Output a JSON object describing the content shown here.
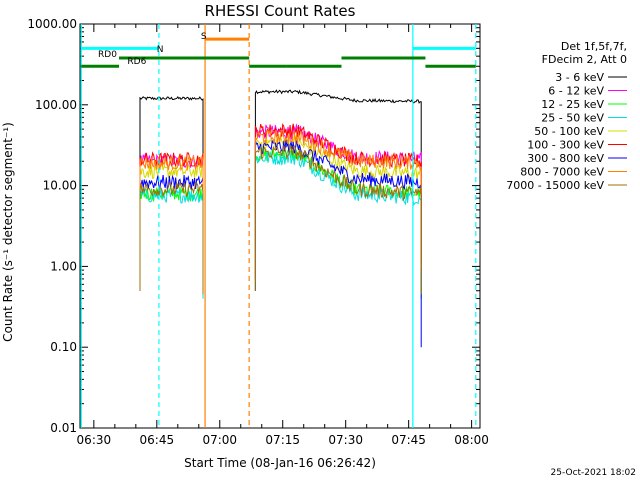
{
  "chart_data": {
    "type": "line",
    "title": "RHESSI Count Rates",
    "xlabel": "Start Time (08-Jan-16 06:26:42)",
    "ylabel": "Count Rate (s⁻¹ detector segment⁻¹)",
    "yscale": "log",
    "ylim": [
      0.01,
      1000
    ],
    "xlim_minutes": [
      "06:26:42",
      "08:02:00"
    ],
    "x_ticks": [
      "06:30",
      "06:45",
      "07:00",
      "07:15",
      "07:30",
      "07:45",
      "08:00"
    ],
    "y_ticks": [
      "0.01",
      "0.10",
      "1.00",
      "10.00",
      "100.00",
      "1000.00"
    ],
    "legend_header": [
      "Det 1f,5f,7f,",
      "FDecim 2, Att 0"
    ],
    "series": [
      {
        "name": "3 - 6 keV",
        "color": "#000000",
        "level1": 120,
        "level2": 145,
        "end2": 110
      },
      {
        "name": "6 - 12 keV",
        "color": "#ff00ff",
        "level1": 20,
        "level2": 46,
        "end2": 21
      },
      {
        "name": "12 - 25 keV",
        "color": "#00ff00",
        "level1": 8,
        "level2": 24,
        "end2": 8
      },
      {
        "name": "25 - 50 keV",
        "color": "#00e0e0",
        "level1": 7.5,
        "level2": 22,
        "end2": 7
      },
      {
        "name": "50 - 100 keV",
        "color": "#d8d800",
        "level1": 15,
        "level2": 34,
        "end2": 14
      },
      {
        "name": "100 - 300 keV",
        "color": "#ff0000",
        "level1": 21,
        "level2": 48,
        "end2": 20
      },
      {
        "name": "300 - 800 keV",
        "color": "#0000ff",
        "level1": 11,
        "level2": 30,
        "end2": 11
      },
      {
        "name": "800 - 7000 keV",
        "color": "#ff8000",
        "level1": 19,
        "level2": 40,
        "end2": 19
      },
      {
        "name": "7000 - 15000 keV",
        "color": "#a07000",
        "level1": 9,
        "level2": 26,
        "end2": 8
      }
    ],
    "flags": [
      {
        "label": "N",
        "color": "#00ffff",
        "value": 500
      },
      {
        "label": "S",
        "color": "#ff8000",
        "value": 650
      },
      {
        "label": "RD0",
        "color": "#008000",
        "value": 380
      },
      {
        "label": "RD6",
        "color": "#008000",
        "value": 300
      }
    ],
    "footer_timestamp": "25-Oct-2021 18:02"
  }
}
